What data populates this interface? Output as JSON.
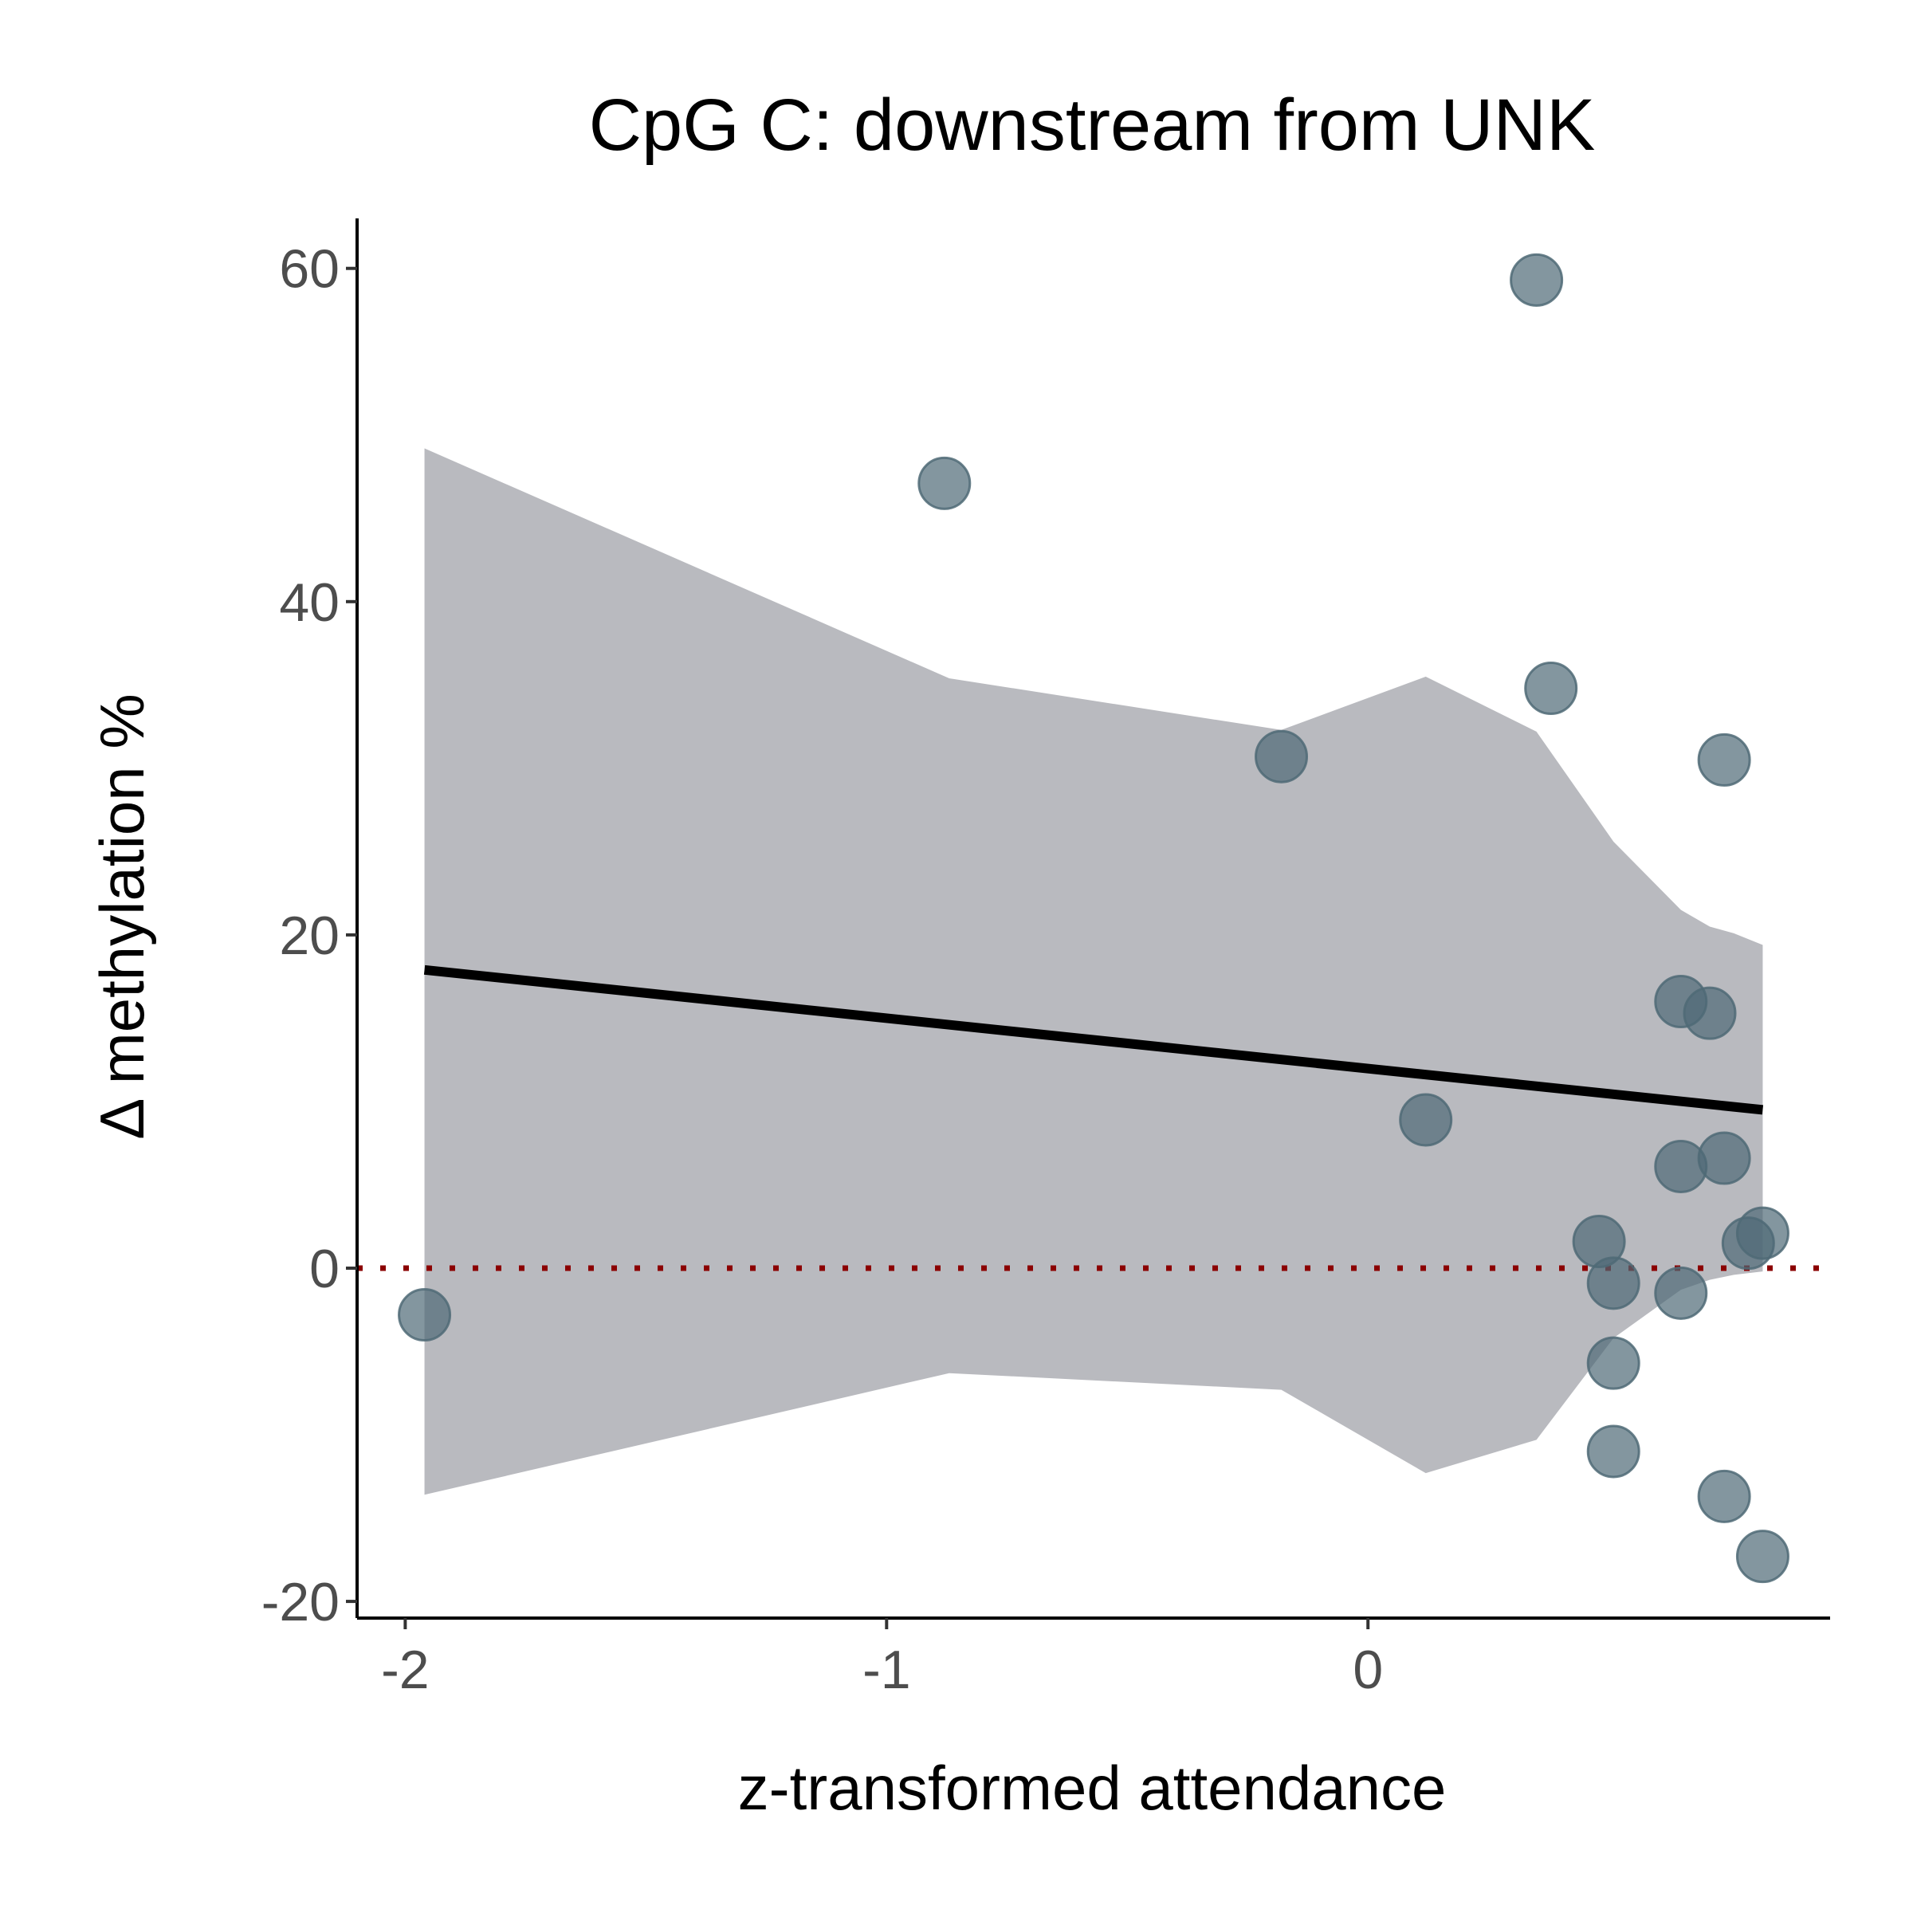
{
  "chart_data": {
    "type": "scatter",
    "title": "CpG C: downstream from UNK",
    "xlabel": "z-transformed attendance",
    "ylabel": "Δ methylation %",
    "xlim": [
      -2.1,
      0.96
    ],
    "ylim": [
      -21,
      63
    ],
    "x_ticks": [
      -2,
      -1,
      0
    ],
    "y_ticks": [
      -20,
      0,
      20,
      40,
      60
    ],
    "grid": false,
    "reference_line": {
      "y": 0,
      "style": "dotted",
      "color": "#8b0000"
    },
    "regression_line": {
      "x": [
        -1.96,
        0.82
      ],
      "y": [
        17.9,
        9.5
      ],
      "color": "#000000"
    },
    "confidence_band": {
      "color": "#b9babf",
      "x": [
        -1.96,
        -0.87,
        -0.18,
        0.12,
        0.35,
        0.51,
        0.65,
        0.71,
        0.76,
        0.82
      ],
      "upper": [
        49.2,
        35.4,
        32.3,
        35.5,
        32.2,
        25.6,
        21.5,
        20.5,
        20.1,
        19.4
      ],
      "lower": [
        -13.6,
        -6.3,
        -7.3,
        -12.3,
        -10.3,
        -4.2,
        -1.3,
        -0.7,
        -0.4,
        -0.2
      ]
    },
    "points": {
      "color": "#4f6a76",
      "x": [
        -1.96,
        -0.88,
        -0.18,
        0.12,
        0.35,
        0.38,
        0.48,
        0.51,
        0.51,
        0.51,
        0.65,
        0.65,
        0.65,
        0.71,
        0.74,
        0.74,
        0.74,
        0.79,
        0.82,
        0.82
      ],
      "y": [
        -2.8,
        47.1,
        30.7,
        8.9,
        59.3,
        34.8,
        1.6,
        -0.9,
        -5.7,
        -11.0,
        16.0,
        6.1,
        -1.5,
        15.3,
        30.5,
        6.6,
        -13.7,
        1.5,
        2.1,
        -17.3
      ]
    }
  }
}
